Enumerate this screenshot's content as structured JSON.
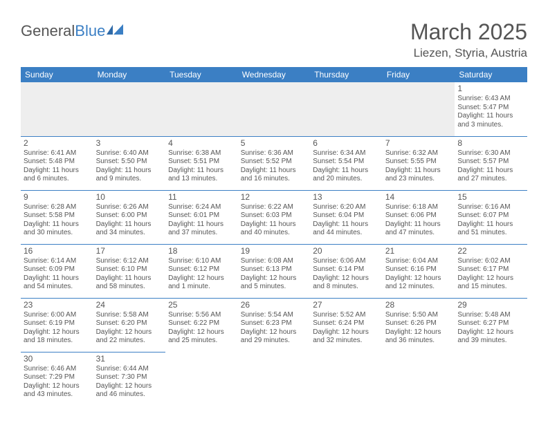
{
  "logo": {
    "text1": "General",
    "text2": "Blue"
  },
  "title": "March 2025",
  "location": "Liezen, Styria, Austria",
  "header_bg": "#3b7fc4",
  "weekdays": [
    "Sunday",
    "Monday",
    "Tuesday",
    "Wednesday",
    "Thursday",
    "Friday",
    "Saturday"
  ],
  "weeks": [
    [
      null,
      null,
      null,
      null,
      null,
      null,
      {
        "n": "1",
        "sr": "Sunrise: 6:43 AM",
        "ss": "Sunset: 5:47 PM",
        "dl": "Daylight: 11 hours and 3 minutes."
      }
    ],
    [
      {
        "n": "2",
        "sr": "Sunrise: 6:41 AM",
        "ss": "Sunset: 5:48 PM",
        "dl": "Daylight: 11 hours and 6 minutes."
      },
      {
        "n": "3",
        "sr": "Sunrise: 6:40 AM",
        "ss": "Sunset: 5:50 PM",
        "dl": "Daylight: 11 hours and 9 minutes."
      },
      {
        "n": "4",
        "sr": "Sunrise: 6:38 AM",
        "ss": "Sunset: 5:51 PM",
        "dl": "Daylight: 11 hours and 13 minutes."
      },
      {
        "n": "5",
        "sr": "Sunrise: 6:36 AM",
        "ss": "Sunset: 5:52 PM",
        "dl": "Daylight: 11 hours and 16 minutes."
      },
      {
        "n": "6",
        "sr": "Sunrise: 6:34 AM",
        "ss": "Sunset: 5:54 PM",
        "dl": "Daylight: 11 hours and 20 minutes."
      },
      {
        "n": "7",
        "sr": "Sunrise: 6:32 AM",
        "ss": "Sunset: 5:55 PM",
        "dl": "Daylight: 11 hours and 23 minutes."
      },
      {
        "n": "8",
        "sr": "Sunrise: 6:30 AM",
        "ss": "Sunset: 5:57 PM",
        "dl": "Daylight: 11 hours and 27 minutes."
      }
    ],
    [
      {
        "n": "9",
        "sr": "Sunrise: 6:28 AM",
        "ss": "Sunset: 5:58 PM",
        "dl": "Daylight: 11 hours and 30 minutes."
      },
      {
        "n": "10",
        "sr": "Sunrise: 6:26 AM",
        "ss": "Sunset: 6:00 PM",
        "dl": "Daylight: 11 hours and 34 minutes."
      },
      {
        "n": "11",
        "sr": "Sunrise: 6:24 AM",
        "ss": "Sunset: 6:01 PM",
        "dl": "Daylight: 11 hours and 37 minutes."
      },
      {
        "n": "12",
        "sr": "Sunrise: 6:22 AM",
        "ss": "Sunset: 6:03 PM",
        "dl": "Daylight: 11 hours and 40 minutes."
      },
      {
        "n": "13",
        "sr": "Sunrise: 6:20 AM",
        "ss": "Sunset: 6:04 PM",
        "dl": "Daylight: 11 hours and 44 minutes."
      },
      {
        "n": "14",
        "sr": "Sunrise: 6:18 AM",
        "ss": "Sunset: 6:06 PM",
        "dl": "Daylight: 11 hours and 47 minutes."
      },
      {
        "n": "15",
        "sr": "Sunrise: 6:16 AM",
        "ss": "Sunset: 6:07 PM",
        "dl": "Daylight: 11 hours and 51 minutes."
      }
    ],
    [
      {
        "n": "16",
        "sr": "Sunrise: 6:14 AM",
        "ss": "Sunset: 6:09 PM",
        "dl": "Daylight: 11 hours and 54 minutes."
      },
      {
        "n": "17",
        "sr": "Sunrise: 6:12 AM",
        "ss": "Sunset: 6:10 PM",
        "dl": "Daylight: 11 hours and 58 minutes."
      },
      {
        "n": "18",
        "sr": "Sunrise: 6:10 AM",
        "ss": "Sunset: 6:12 PM",
        "dl": "Daylight: 12 hours and 1 minute."
      },
      {
        "n": "19",
        "sr": "Sunrise: 6:08 AM",
        "ss": "Sunset: 6:13 PM",
        "dl": "Daylight: 12 hours and 5 minutes."
      },
      {
        "n": "20",
        "sr": "Sunrise: 6:06 AM",
        "ss": "Sunset: 6:14 PM",
        "dl": "Daylight: 12 hours and 8 minutes."
      },
      {
        "n": "21",
        "sr": "Sunrise: 6:04 AM",
        "ss": "Sunset: 6:16 PM",
        "dl": "Daylight: 12 hours and 12 minutes."
      },
      {
        "n": "22",
        "sr": "Sunrise: 6:02 AM",
        "ss": "Sunset: 6:17 PM",
        "dl": "Daylight: 12 hours and 15 minutes."
      }
    ],
    [
      {
        "n": "23",
        "sr": "Sunrise: 6:00 AM",
        "ss": "Sunset: 6:19 PM",
        "dl": "Daylight: 12 hours and 18 minutes."
      },
      {
        "n": "24",
        "sr": "Sunrise: 5:58 AM",
        "ss": "Sunset: 6:20 PM",
        "dl": "Daylight: 12 hours and 22 minutes."
      },
      {
        "n": "25",
        "sr": "Sunrise: 5:56 AM",
        "ss": "Sunset: 6:22 PM",
        "dl": "Daylight: 12 hours and 25 minutes."
      },
      {
        "n": "26",
        "sr": "Sunrise: 5:54 AM",
        "ss": "Sunset: 6:23 PM",
        "dl": "Daylight: 12 hours and 29 minutes."
      },
      {
        "n": "27",
        "sr": "Sunrise: 5:52 AM",
        "ss": "Sunset: 6:24 PM",
        "dl": "Daylight: 12 hours and 32 minutes."
      },
      {
        "n": "28",
        "sr": "Sunrise: 5:50 AM",
        "ss": "Sunset: 6:26 PM",
        "dl": "Daylight: 12 hours and 36 minutes."
      },
      {
        "n": "29",
        "sr": "Sunrise: 5:48 AM",
        "ss": "Sunset: 6:27 PM",
        "dl": "Daylight: 12 hours and 39 minutes."
      }
    ],
    [
      {
        "n": "30",
        "sr": "Sunrise: 6:46 AM",
        "ss": "Sunset: 7:29 PM",
        "dl": "Daylight: 12 hours and 43 minutes."
      },
      {
        "n": "31",
        "sr": "Sunrise: 6:44 AM",
        "ss": "Sunset: 7:30 PM",
        "dl": "Daylight: 12 hours and 46 minutes."
      },
      null,
      null,
      null,
      null,
      null
    ]
  ]
}
